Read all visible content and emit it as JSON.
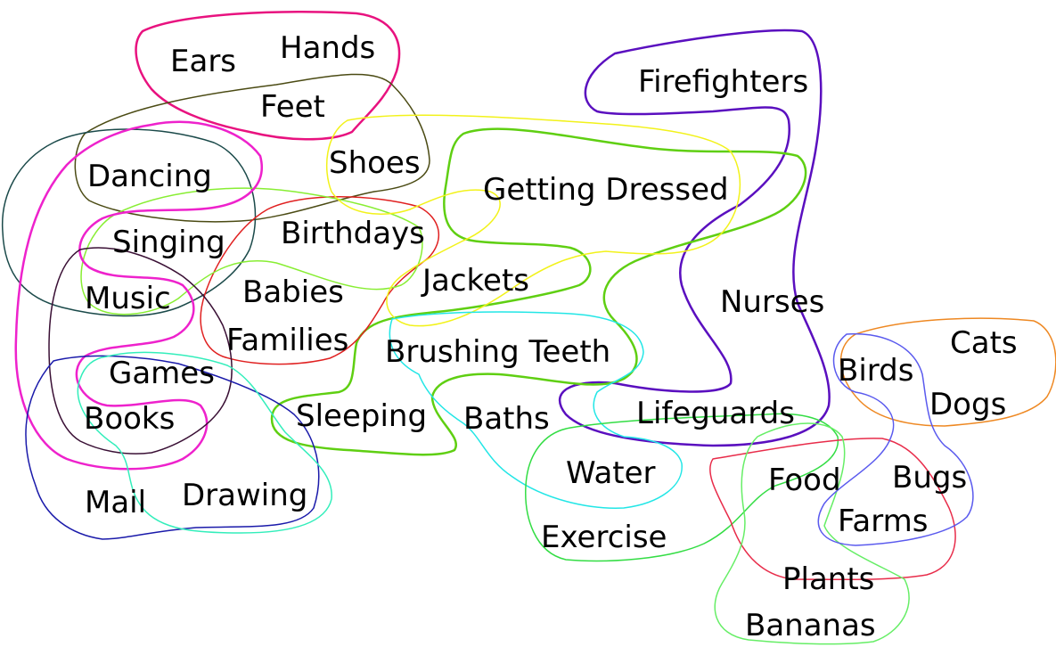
{
  "words": {
    "ears": "Ears",
    "hands": "Hands",
    "feet": "Feet",
    "firefighters": "Firefighters",
    "shoes": "Shoes",
    "dancing": "Dancing",
    "getting_dressed": "Getting Dressed",
    "birthdays": "Birthdays",
    "singing": "Singing",
    "jackets": "Jackets",
    "babies": "Babies",
    "music": "Music",
    "nurses": "Nurses",
    "families": "Families",
    "cats": "Cats",
    "brushing_teeth": "Brushing Teeth",
    "birds": "Birds",
    "games": "Games",
    "dogs": "Dogs",
    "lifeguards": "Lifeguards",
    "sleeping": "Sleeping",
    "baths": "Baths",
    "books": "Books",
    "water": "Water",
    "bugs": "Bugs",
    "food": "Food",
    "mail": "Mail",
    "drawing": "Drawing",
    "farms": "Farms",
    "exercise": "Exercise",
    "plants": "Plants",
    "bananas": "Bananas"
  },
  "colors": {
    "body_parts": "#e8127f",
    "firefighters_nurses": "#5a0fbf",
    "shoes_feet": "#4b4b14",
    "dancing_music": "#1b4a4a",
    "getting_dressed": "#5fcf12",
    "birthdays_families": "#e02020",
    "singing_sleeping": "#88ee33",
    "shoes_jackets": "#f2f21a",
    "dancing_books": "#ee22cc",
    "music_books": "#3a1035",
    "brushing_baths": "#22e6e6",
    "books_mail": "#1a1aaa",
    "games_drawing": "#33eebb",
    "water_exercise": "#33dd44",
    "food_plants": "#e82c4a",
    "food_bananas": "#66ee66",
    "cats_dogs": "#ee8822",
    "birds_bugs": "#5a5aee"
  }
}
